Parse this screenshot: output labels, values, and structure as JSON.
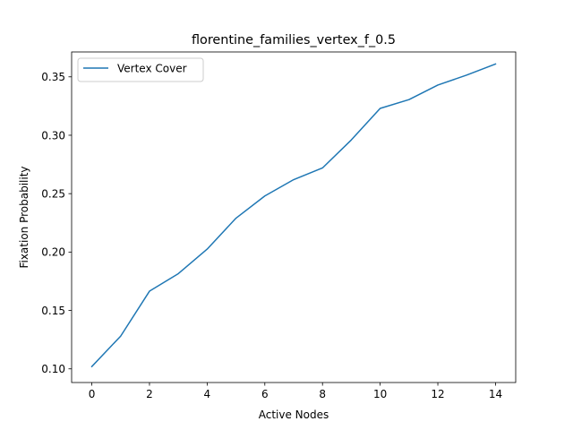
{
  "chart_data": {
    "type": "line",
    "title": "florentine_families_vertex_f_0.5",
    "xlabel": "Active Nodes",
    "ylabel": "Fixation Probability",
    "xlim": [
      -0.7,
      14.7
    ],
    "ylim": [
      0.0883,
      0.3713
    ],
    "xticks": [
      0,
      2,
      4,
      6,
      8,
      10,
      12,
      14
    ],
    "xtick_labels": [
      "0",
      "2",
      "4",
      "6",
      "8",
      "10",
      "12",
      "14"
    ],
    "yticks": [
      0.1,
      0.15,
      0.2,
      0.25,
      0.3,
      0.35
    ],
    "ytick_labels": [
      "0.10",
      "0.15",
      "0.20",
      "0.25",
      "0.30",
      "0.35"
    ],
    "grid": false,
    "legend_position": "upper-left",
    "series": [
      {
        "name": "Vertex Cover",
        "color": "#1f77b4",
        "x": [
          0,
          1,
          2,
          3,
          4,
          5,
          6,
          7,
          8,
          9,
          10,
          11,
          12,
          13,
          14
        ],
        "y": [
          0.102,
          0.128,
          0.1665,
          0.1815,
          0.2025,
          0.229,
          0.248,
          0.262,
          0.272,
          0.296,
          0.323,
          0.3305,
          0.343,
          0.3515,
          0.361
        ]
      }
    ]
  }
}
